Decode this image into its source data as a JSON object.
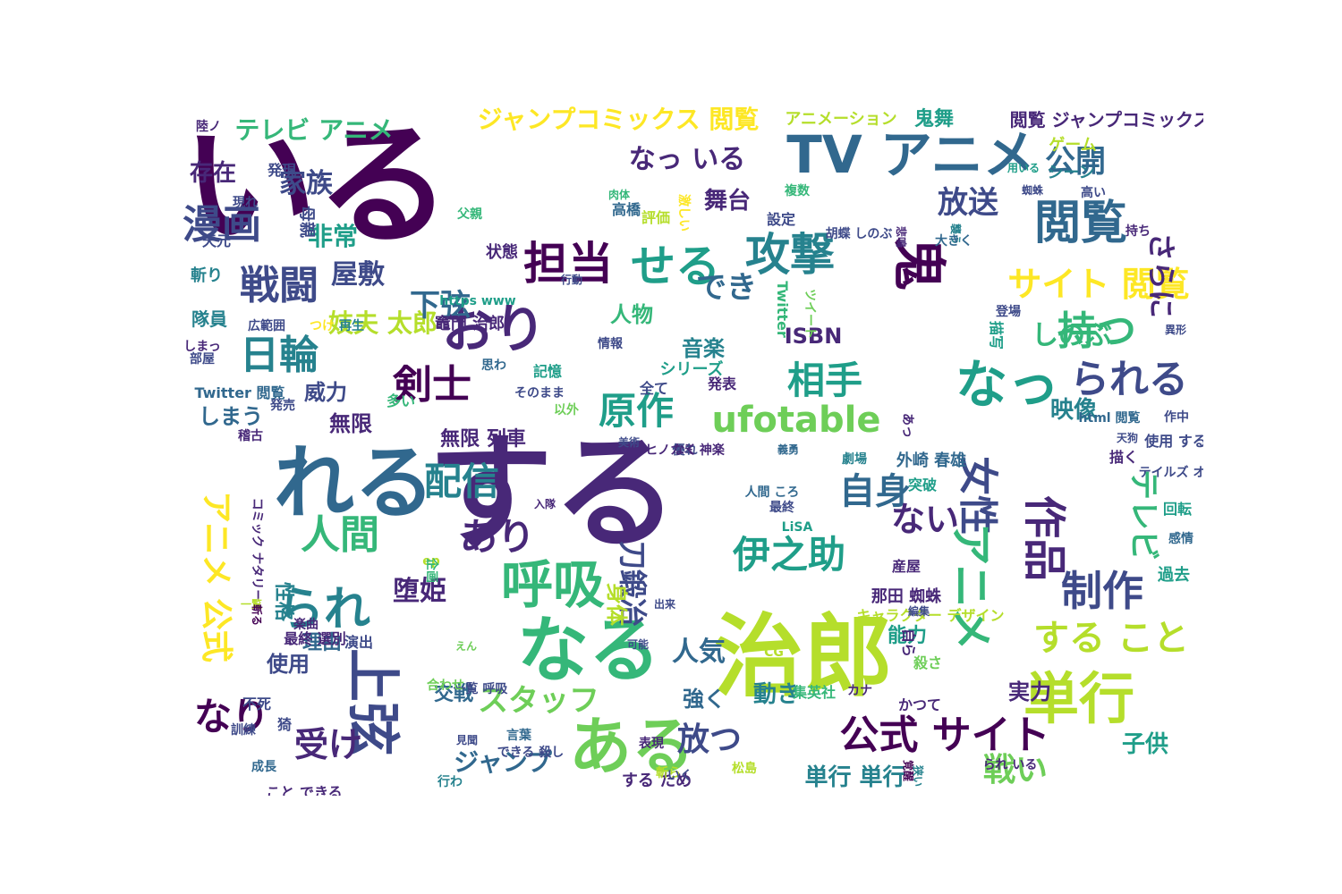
{
  "palette": {
    "c0": "#440154",
    "c1": "#482878",
    "c2": "#3e4a89",
    "c3": "#31688e",
    "c4": "#26828e",
    "c5": "#1f9e89",
    "c6": "#35b779",
    "c7": "#6ece58",
    "c8": "#b5de2b",
    "c9": "#fde725"
  },
  "words": [
    {
      "text": "いる",
      "color": "c0",
      "size": 150,
      "rot": 0
    },
    {
      "text": "する",
      "color": "c1",
      "size": 140,
      "rot": 0
    },
    {
      "text": "治郎",
      "color": "c8",
      "size": 100,
      "rot": 0
    },
    {
      "text": "れる",
      "color": "c3",
      "size": 90,
      "rot": 0
    },
    {
      "text": "なる",
      "color": "c6",
      "size": 80,
      "rot": 0
    },
    {
      "text": "ある",
      "color": "c7",
      "size": 70,
      "rot": 0
    },
    {
      "text": "TV アニメ",
      "color": "c3",
      "size": 58,
      "rot": 0
    },
    {
      "text": "おり",
      "color": "c1",
      "size": 58,
      "rot": 0
    },
    {
      "text": "なっ",
      "color": "c5",
      "size": 58,
      "rot": 0
    },
    {
      "text": "呼吸",
      "color": "c6",
      "size": 58,
      "rot": 0
    },
    {
      "text": "単行",
      "color": "c8",
      "size": 62,
      "rot": 0
    },
    {
      "text": "鬼",
      "color": "c0",
      "size": 60,
      "rot": 90
    },
    {
      "text": "上弦",
      "color": "c2",
      "size": 60,
      "rot": 90
    },
    {
      "text": "担当",
      "color": "c0",
      "size": 50,
      "rot": 0
    },
    {
      "text": "せる",
      "color": "c5",
      "size": 50,
      "rot": 0
    },
    {
      "text": "攻撃",
      "color": "c4",
      "size": 50,
      "rot": 0
    },
    {
      "text": "閲覧",
      "color": "c3",
      "size": 52,
      "rot": 0
    },
    {
      "text": "漫画",
      "color": "c2",
      "size": 44,
      "rot": 0
    },
    {
      "text": "戦闘",
      "color": "c2",
      "size": 44,
      "rot": 0
    },
    {
      "text": "日輪",
      "color": "c4",
      "size": 44,
      "rot": 0
    },
    {
      "text": "剣士",
      "color": "c0",
      "size": 44,
      "rot": 0
    },
    {
      "text": "持つ",
      "color": "c6",
      "size": 44,
      "rot": 0
    },
    {
      "text": "られる",
      "color": "c2",
      "size": 44,
      "rot": 0
    },
    {
      "text": "相手",
      "color": "c5",
      "size": 42,
      "rot": 0
    },
    {
      "text": "ufotable",
      "color": "c7",
      "size": 40,
      "rot": 0
    },
    {
      "text": "原作",
      "color": "c5",
      "size": 42,
      "rot": 0
    },
    {
      "text": "配信",
      "color": "c4",
      "size": 42,
      "rot": 0
    },
    {
      "text": "あり",
      "color": "c1",
      "size": 42,
      "rot": 0
    },
    {
      "text": "人間",
      "color": "c6",
      "size": 44,
      "rot": 0
    },
    {
      "text": "られ",
      "color": "c4",
      "size": 52,
      "rot": 0
    },
    {
      "text": "伊之助",
      "color": "c5",
      "size": 42,
      "rot": 0
    },
    {
      "text": "制作",
      "color": "c2",
      "size": 46,
      "rot": 0
    },
    {
      "text": "作品",
      "color": "c1",
      "size": 48,
      "rot": 90
    },
    {
      "text": "女性",
      "color": "c2",
      "size": 44,
      "rot": 90
    },
    {
      "text": "アニメ",
      "color": "c6",
      "size": 48,
      "rot": 90
    },
    {
      "text": "テレビ",
      "color": "c6",
      "size": 34,
      "rot": 90
    },
    {
      "text": "アニメ 公式",
      "color": "c9",
      "size": 36,
      "rot": 90
    },
    {
      "text": "自身",
      "color": "c3",
      "size": 40,
      "rot": 0
    },
    {
      "text": "ない",
      "color": "c1",
      "size": 38,
      "rot": 0
    },
    {
      "text": "サイト 閲覧",
      "color": "c9",
      "size": 38,
      "rot": 0
    },
    {
      "text": "公式 サイト",
      "color": "c0",
      "size": 44,
      "rot": 0
    },
    {
      "text": "する こと",
      "color": "c8",
      "size": 40,
      "rot": 0
    },
    {
      "text": "なり",
      "color": "c0",
      "size": 42,
      "rot": 0
    },
    {
      "text": "受け",
      "color": "c1",
      "size": 38,
      "rot": 0
    },
    {
      "text": "スタッフ",
      "color": "c7",
      "size": 34,
      "rot": 0
    },
    {
      "text": "放つ",
      "color": "c2",
      "size": 36,
      "rot": 0
    },
    {
      "text": "戦い",
      "color": "c7",
      "size": 36,
      "rot": 0
    },
    {
      "text": "ジャンプコミックス 閲覧",
      "color": "c9",
      "size": 28,
      "rot": 0
    },
    {
      "text": "テレビ アニメ",
      "color": "c6",
      "size": 28,
      "rot": 0
    },
    {
      "text": "なっ いる",
      "color": "c1",
      "size": 30,
      "rot": 0
    },
    {
      "text": "公開",
      "color": "c3",
      "size": 34,
      "rot": 0
    },
    {
      "text": "放送",
      "color": "c2",
      "size": 34,
      "rot": 0
    },
    {
      "text": "舞台",
      "color": "c1",
      "size": 26,
      "rot": 0
    },
    {
      "text": "でき",
      "color": "c3",
      "size": 34,
      "rot": 0
    },
    {
      "text": "さらに",
      "color": "c1",
      "size": 32,
      "rot": 90
    },
    {
      "text": "存在",
      "color": "c1",
      "size": 26,
      "rot": 0
    },
    {
      "text": "家族",
      "color": "c2",
      "size": 30,
      "rot": 0
    },
    {
      "text": "非常",
      "color": "c5",
      "size": 28,
      "rot": 0
    },
    {
      "text": "屋敷",
      "color": "c2",
      "size": 30,
      "rot": 0
    },
    {
      "text": "妓夫 太郎",
      "color": "c8",
      "size": 28,
      "rot": 0
    },
    {
      "text": "下弦",
      "color": "c3",
      "size": 34,
      "rot": 0
    },
    {
      "text": "しのぶ",
      "color": "c6",
      "size": 30,
      "rot": 0
    },
    {
      "text": "人物",
      "color": "c6",
      "size": 24,
      "rot": 0
    },
    {
      "text": "音楽",
      "color": "c4",
      "size": 24,
      "rot": 0
    },
    {
      "text": "ISBN",
      "color": "c1",
      "size": 24,
      "rot": 0
    },
    {
      "text": "刀鍛冶",
      "color": "c2",
      "size": 32,
      "rot": 90
    },
    {
      "text": "身体",
      "color": "c8",
      "size": 24,
      "rot": 90
    },
    {
      "text": "堕姫",
      "color": "c1",
      "size": 30,
      "rot": 0
    },
    {
      "text": "人気",
      "color": "c3",
      "size": 30,
      "rot": 0
    },
    {
      "text": "動き",
      "color": "c4",
      "size": 26,
      "rot": 0
    },
    {
      "text": "映像",
      "color": "c4",
      "size": 26,
      "rot": 0
    },
    {
      "text": "実力",
      "color": "c1",
      "size": 24,
      "rot": 0
    },
    {
      "text": "子供",
      "color": "c5",
      "size": 26,
      "rot": 0
    },
    {
      "text": "ジャンプ",
      "color": "c3",
      "size": 28,
      "rot": 0
    },
    {
      "text": "単行 単行",
      "color": "c4",
      "size": 26,
      "rot": 0
    },
    {
      "text": "威力",
      "color": "c2",
      "size": 24,
      "rot": 0
    },
    {
      "text": "しまう",
      "color": "c3",
      "size": 24,
      "rot": 0
    },
    {
      "text": "無限",
      "color": "c1",
      "size": 24,
      "rot": 0
    },
    {
      "text": "無限 列車",
      "color": "c1",
      "size": 22,
      "rot": 0
    },
    {
      "text": "交戦",
      "color": "c3",
      "size": 22,
      "rot": 0
    },
    {
      "text": "強く",
      "color": "c3",
      "size": 24,
      "rot": 0
    },
    {
      "text": "能力",
      "color": "c5",
      "size": 22,
      "rot": 0
    },
    {
      "text": "使用",
      "color": "c2",
      "size": 24,
      "rot": 0
    },
    {
      "text": "理由",
      "color": "c3",
      "size": 22,
      "rot": 0
    },
    {
      "text": "性格",
      "color": "c4",
      "size": 22,
      "rot": 90
    },
    {
      "text": "鬼舞",
      "color": "c5",
      "size": 22,
      "rot": 0
    },
    {
      "text": "閲覧 ジャンプコミックス",
      "color": "c1",
      "size": 20,
      "rot": 0
    },
    {
      "text": "アニメーション",
      "color": "c8",
      "size": 18,
      "rot": 0
    },
    {
      "text": "ゲーム",
      "color": "c8",
      "size": 18,
      "rot": 0
    },
    {
      "text": "シーン",
      "color": "c4",
      "size": 18,
      "rot": 0
    },
    {
      "text": "陸ノ",
      "color": "c1",
      "size": 14,
      "rot": 0
    },
    {
      "text": "発現",
      "color": "c2",
      "size": 16,
      "rot": 0
    },
    {
      "text": "現れ",
      "color": "c2",
      "size": 14,
      "rot": 0
    },
    {
      "text": "母親",
      "color": "c2",
      "size": 18,
      "rot": 90
    },
    {
      "text": "父親",
      "color": "c6",
      "size": 14,
      "rot": 0
    },
    {
      "text": "天元",
      "color": "c2",
      "size": 16,
      "rot": 0
    },
    {
      "text": "斬り",
      "color": "c4",
      "size": 18,
      "rot": 0
    },
    {
      "text": "隊員",
      "color": "c4",
      "size": 20,
      "rot": 0
    },
    {
      "text": "状態",
      "color": "c1",
      "size": 18,
      "rot": 0
    },
    {
      "text": "https www",
      "color": "c5",
      "size": 14,
      "rot": 0
    },
    {
      "text": "竈門 治郎",
      "color": "c1",
      "size": 18,
      "rot": 0
    },
    {
      "text": "再生",
      "color": "c4",
      "size": 14,
      "rot": 0
    },
    {
      "text": "広範囲",
      "color": "c2",
      "size": 14,
      "rot": 0
    },
    {
      "text": "つけ",
      "color": "c9",
      "size": 14,
      "rot": 0
    },
    {
      "text": "しまっ",
      "color": "c1",
      "size": 14,
      "rot": 0
    },
    {
      "text": "部屋",
      "color": "c2",
      "size": 14,
      "rot": 0
    },
    {
      "text": "Twitter 閲覧",
      "color": "c3",
      "size": 16,
      "rot": 0
    },
    {
      "text": "発売",
      "color": "c2",
      "size": 14,
      "rot": 0
    },
    {
      "text": "稽古",
      "color": "c1",
      "size": 14,
      "rot": 0
    },
    {
      "text": "多い",
      "color": "c6",
      "size": 16,
      "rot": 0
    },
    {
      "text": "以外",
      "color": "c7",
      "size": 14,
      "rot": 0
    },
    {
      "text": "思わ",
      "color": "c3",
      "size": 14,
      "rot": 0
    },
    {
      "text": "記憶",
      "color": "c5",
      "size": 16,
      "rot": 0
    },
    {
      "text": "そのまま",
      "color": "c2",
      "size": 14,
      "rot": 0
    },
    {
      "text": "全て",
      "color": "c2",
      "size": 16,
      "rot": 0
    },
    {
      "text": "シリーズ",
      "color": "c5",
      "size": 18,
      "rot": 0
    },
    {
      "text": "情報",
      "color": "c2",
      "size": 14,
      "rot": 0
    },
    {
      "text": "Twitter",
      "color": "c6",
      "size": 16,
      "rot": 90
    },
    {
      "text": "ツイート",
      "color": "c7",
      "size": 14,
      "rot": 90
    },
    {
      "text": "設定",
      "color": "c2",
      "size": 16,
      "rot": 0
    },
    {
      "text": "胡蝶 しのぶ",
      "color": "c2",
      "size": 14,
      "rot": 0
    },
    {
      "text": "複数",
      "color": "c6",
      "size": 14,
      "rot": 0
    },
    {
      "text": "肉体",
      "color": "c6",
      "size": 12,
      "rot": 0
    },
    {
      "text": "高橋",
      "color": "c3",
      "size": 16,
      "rot": 0
    },
    {
      "text": "評価",
      "color": "c8",
      "size": 16,
      "rot": 0
    },
    {
      "text": "激しい",
      "color": "c9",
      "size": 14,
      "rot": 90
    },
    {
      "text": "行動",
      "color": "c2",
      "size": 12,
      "rot": 0
    },
    {
      "text": "悲鳴",
      "color": "c1",
      "size": 12,
      "rot": 90
    },
    {
      "text": "用いる",
      "color": "c5",
      "size": 12,
      "rot": 0
    },
    {
      "text": "蜘蛛",
      "color": "c2",
      "size": 12,
      "rot": 0
    },
    {
      "text": "高い",
      "color": "c2",
      "size": 14,
      "rot": 0
    },
    {
      "text": "襲う",
      "color": "c4",
      "size": 12,
      "rot": 90
    },
    {
      "text": "大きく",
      "color": "c3",
      "size": 14,
      "rot": 0
    },
    {
      "text": "持ち",
      "color": "c1",
      "size": 14,
      "rot": 0
    },
    {
      "text": "登場",
      "color": "c2",
      "size": 14,
      "rot": 0
    },
    {
      "text": "描写",
      "color": "c5",
      "size": 16,
      "rot": 90
    },
    {
      "text": "異形",
      "color": "c2",
      "size": 12,
      "rot": 0
    },
    {
      "text": "発表",
      "color": "c1",
      "size": 16,
      "rot": 0
    },
    {
      "text": "あっ",
      "color": "c1",
      "size": 14,
      "rot": 90
    },
    {
      "text": "html 閲覧",
      "color": "c3",
      "size": 14,
      "rot": 0
    },
    {
      "text": "天狗",
      "color": "c2",
      "size": 12,
      "rot": 0
    },
    {
      "text": "描く",
      "color": "c1",
      "size": 16,
      "rot": 0
    },
    {
      "text": "義勇",
      "color": "c3",
      "size": 12,
      "rot": 0
    },
    {
      "text": "外崎 春雄",
      "color": "c3",
      "size": 18,
      "rot": 0
    },
    {
      "text": "突破",
      "color": "c5",
      "size": 16,
      "rot": 0
    },
    {
      "text": "劇場",
      "color": "c4",
      "size": 14,
      "rot": 0
    },
    {
      "text": "人間 ころ",
      "color": "c3",
      "size": 14,
      "rot": 0
    },
    {
      "text": "最終",
      "color": "c2",
      "size": 14,
      "rot": 0
    },
    {
      "text": "LiSA",
      "color": "c5",
      "size": 14,
      "rot": 0
    },
    {
      "text": "作中",
      "color": "c2",
      "size": 14,
      "rot": 0
    },
    {
      "text": "使用 する",
      "color": "c2",
      "size": 16,
      "rot": 0
    },
    {
      "text": "テイルズ オブ",
      "color": "c2",
      "size": 14,
      "rot": 0
    },
    {
      "text": "回転",
      "color": "c5",
      "size": 16,
      "rot": 0
    },
    {
      "text": "感情",
      "color": "c3",
      "size": 14,
      "rot": 0
    },
    {
      "text": "過去",
      "color": "c5",
      "size": 18,
      "rot": 0
    },
    {
      "text": "美術",
      "color": "c2",
      "size": 12,
      "rot": 0
    },
    {
      "text": "入隊",
      "color": "c1",
      "size": 12,
      "rot": 0
    },
    {
      "text": "コミック ナタリー",
      "color": "c1",
      "size": 14,
      "rot": 90
    },
    {
      "text": "一覧",
      "color": "c8",
      "size": 12,
      "rot": 0
    },
    {
      "text": "斬る",
      "color": "c0",
      "size": 12,
      "rot": 90
    },
    {
      "text": "ep",
      "color": "c8",
      "size": 14,
      "rot": 0
    },
    {
      "text": "企画",
      "color": "c6",
      "size": 14,
      "rot": 90
    },
    {
      "text": "出来",
      "color": "c2",
      "size": 12,
      "rot": 0
    },
    {
      "text": "CG",
      "color": "c8",
      "size": 14,
      "rot": 0
    },
    {
      "text": "産屋",
      "color": "c1",
      "size": 16,
      "rot": 0
    },
    {
      "text": "那田 蜘蛛",
      "color": "c1",
      "size": 18,
      "rot": 0
    },
    {
      "text": "キャラクター デザイン",
      "color": "c8",
      "size": 16,
      "rot": 0
    },
    {
      "text": "編集",
      "color": "c2",
      "size": 12,
      "rot": 0
    },
    {
      "text": "自ら",
      "color": "c1",
      "size": 16,
      "rot": 90
    },
    {
      "text": "殺さ",
      "color": "c7",
      "size": 16,
      "rot": 0
    },
    {
      "text": "楽曲",
      "color": "c1",
      "size": 14,
      "rot": 0
    },
    {
      "text": "演出",
      "color": "c2",
      "size": 16,
      "rot": 0
    },
    {
      "text": "えん",
      "color": "c7",
      "size": 12,
      "rot": 0
    },
    {
      "text": "可能",
      "color": "c2",
      "size": 12,
      "rot": 0
    },
    {
      "text": "最終 選別",
      "color": "c1",
      "size": 16,
      "rot": 0
    },
    {
      "text": "一覧 呼吸",
      "color": "c2",
      "size": 14,
      "rot": 0
    },
    {
      "text": "集英社",
      "color": "c6",
      "size": 16,
      "rot": 0
    },
    {
      "text": "カナ",
      "color": "c1",
      "size": 14,
      "rot": 0
    },
    {
      "text": "かつて",
      "color": "c1",
      "size": 16,
      "rot": 0
    },
    {
      "text": "不死",
      "color": "c2",
      "size": 16,
      "rot": 0
    },
    {
      "text": "猗",
      "color": "c2",
      "size": 16,
      "rot": 0
    },
    {
      "text": "訓練",
      "color": "c2",
      "size": 14,
      "rot": 0
    },
    {
      "text": "合わせ",
      "color": "c7",
      "size": 14,
      "rot": 0
    },
    {
      "text": "言葉",
      "color": "c3",
      "size": 14,
      "rot": 0
    },
    {
      "text": "見聞",
      "color": "c2",
      "size": 12,
      "rot": 0
    },
    {
      "text": "成長",
      "color": "c3",
      "size": 14,
      "rot": 0
    },
    {
      "text": "できる 殺し",
      "color": "c2",
      "size": 14,
      "rot": 0
    },
    {
      "text": "表現",
      "color": "c1",
      "size": 14,
      "rot": 0
    },
    {
      "text": "する ため",
      "color": "c1",
      "size": 18,
      "rot": 0
    },
    {
      "text": "斬ら",
      "color": "c8",
      "size": 14,
      "rot": 0
    },
    {
      "text": "られ いる",
      "color": "c1",
      "size": 14,
      "rot": 0
    },
    {
      "text": "覚醒",
      "color": "c0",
      "size": 12,
      "rot": 90
    },
    {
      "text": "狭い",
      "color": "c4",
      "size": 12,
      "rot": 90
    },
    {
      "text": "こと できる",
      "color": "c1",
      "size": 16,
      "rot": 0
    },
    {
      "text": "行わ",
      "color": "c4",
      "size": 14,
      "rot": 0
    },
    {
      "text": "いく",
      "color": "c2",
      "size": 14,
      "rot": 0
    },
    {
      "text": "松島",
      "color": "c8",
      "size": 14,
      "rot": 0
    },
    {
      "text": "ヒノカミ 神楽",
      "color": "c1",
      "size": 14,
      "rot": 0
    },
    {
      "text": "優れ",
      "color": "c2",
      "size": 14,
      "rot": 0
    },
    {
      "text": "なく",
      "color": "c1",
      "size": 14,
      "rot": 0
    }
  ]
}
